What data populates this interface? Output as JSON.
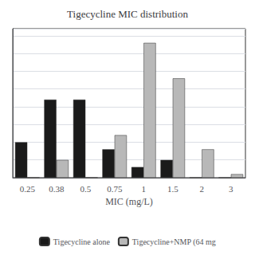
{
  "chart_data": {
    "type": "bar",
    "title": "Tigecycline MIC distribution",
    "xlabel": "MIC (mg/L)",
    "categories": [
      "0.25",
      "0.38",
      "0.5",
      "0.75",
      "1",
      "1.5",
      "2",
      "3"
    ],
    "series": [
      {
        "name": "Tigecycline alone",
        "color": "#1a1a1a",
        "values": [
          10,
          22,
          22,
          8,
          3,
          5,
          0,
          0
        ]
      },
      {
        "name": "Tigecycline+NMP (64 mg",
        "color": "#b8b8b8",
        "values": [
          0,
          5,
          0,
          12,
          38,
          28,
          8,
          1
        ]
      }
    ],
    "ylim": [
      0,
      42
    ],
    "yticks": [
      0,
      5,
      10,
      15,
      20,
      25,
      30,
      35,
      40
    ],
    "grid": true,
    "legend": "bottom",
    "tick_labels": "x"
  }
}
